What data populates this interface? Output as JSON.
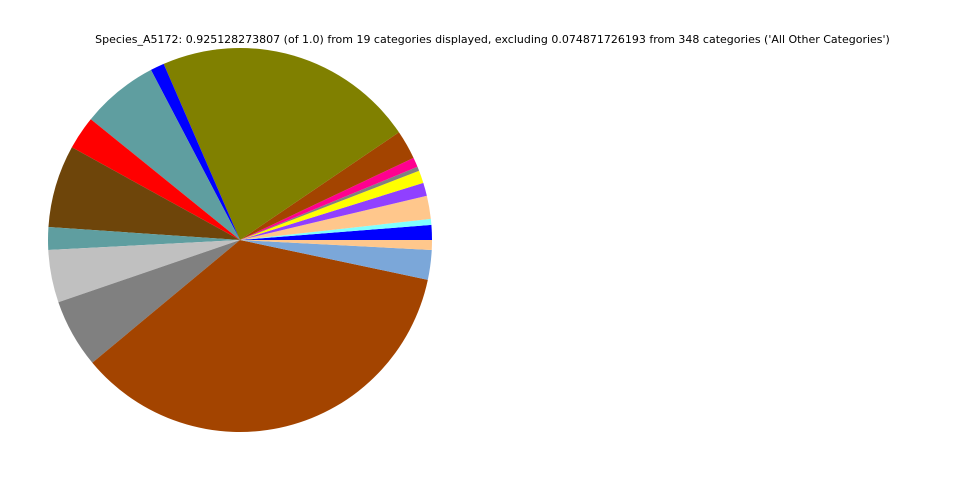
{
  "chart_data": {
    "type": "pie",
    "title": "Species_A5172: 0.925128273807 (of 1.0) from 19 categories displayed, excluding 0.074871726193 from 348 categories ('All Other Categories')",
    "start_angle_deg": 0,
    "direction": "counterclockwise",
    "labels_shown": false,
    "legend": "none",
    "slices": [
      {
        "value": 0.0116,
        "color": "#0000ff"
      },
      {
        "value": 0.0046,
        "color": "#80ffff"
      },
      {
        "value": 0.018,
        "color": "#ffc78c"
      },
      {
        "value": 0.0103,
        "color": "#9040ff"
      },
      {
        "value": 0.0098,
        "color": "#ffff00"
      },
      {
        "value": 0.0033,
        "color": "#808080"
      },
      {
        "value": 0.0075,
        "color": "#ff0090"
      },
      {
        "value": 0.0226,
        "color": "#a34400"
      },
      {
        "value": 0.2038,
        "color": "#808000"
      },
      {
        "value": 0.0108,
        "color": "#0000ff"
      },
      {
        "value": 0.0601,
        "color": "#5f9ea0"
      },
      {
        "value": 0.026,
        "color": "#ff0000"
      },
      {
        "value": 0.0642,
        "color": "#6e450a"
      },
      {
        "value": 0.0177,
        "color": "#5f9ea0"
      },
      {
        "value": 0.0409,
        "color": "#c0c0c0"
      },
      {
        "value": 0.0535,
        "color": "#808080"
      },
      {
        "value": 0.3297,
        "color": "#a34400"
      },
      {
        "value": 0.0231,
        "color": "#7ba7d9"
      },
      {
        "value": 0.0077,
        "color": "#ffc78c"
      }
    ]
  }
}
